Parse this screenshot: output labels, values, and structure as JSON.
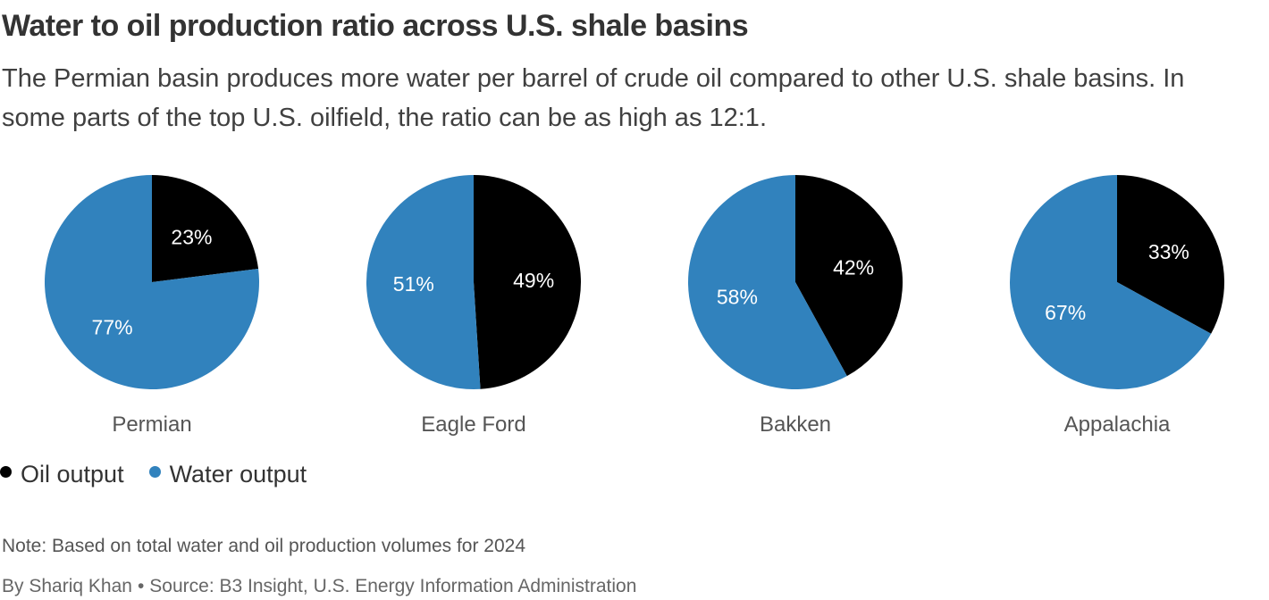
{
  "title": "Water to oil production ratio across U.S. shale basins",
  "subtitle": "The Permian basin produces more water per barrel of crude oil compared to other U.S. shale basins. In some parts of the top U.S. oilfield, the ratio can be as high as 12:1.",
  "chart_data": {
    "type": "pie",
    "series_names": [
      "Oil output",
      "Water output"
    ],
    "colors": {
      "Oil output": "#000000",
      "Water output": "#3182bd"
    },
    "legend_placement": "bottom-left",
    "pies": [
      {
        "name": "Permian",
        "oil": 23,
        "water": 77,
        "oil_label": "23%",
        "water_label": "77%"
      },
      {
        "name": "Eagle Ford",
        "oil": 49,
        "water": 51,
        "oil_label": "49%",
        "water_label": "51%"
      },
      {
        "name": "Bakken",
        "oil": 42,
        "water": 58,
        "oil_label": "42%",
        "water_label": "58%"
      },
      {
        "name": "Appalachia",
        "oil": 33,
        "water": 67,
        "oil_label": "33%",
        "water_label": "67%"
      }
    ]
  },
  "legend": {
    "oil": "Oil output",
    "water": "Water output"
  },
  "note": "Note: Based on total water and oil production volumes for 2024",
  "byline": {
    "author": "By Shariq Khan",
    "separator": "•",
    "source": "Source: B3 Insight, U.S. Energy Information Administration"
  }
}
